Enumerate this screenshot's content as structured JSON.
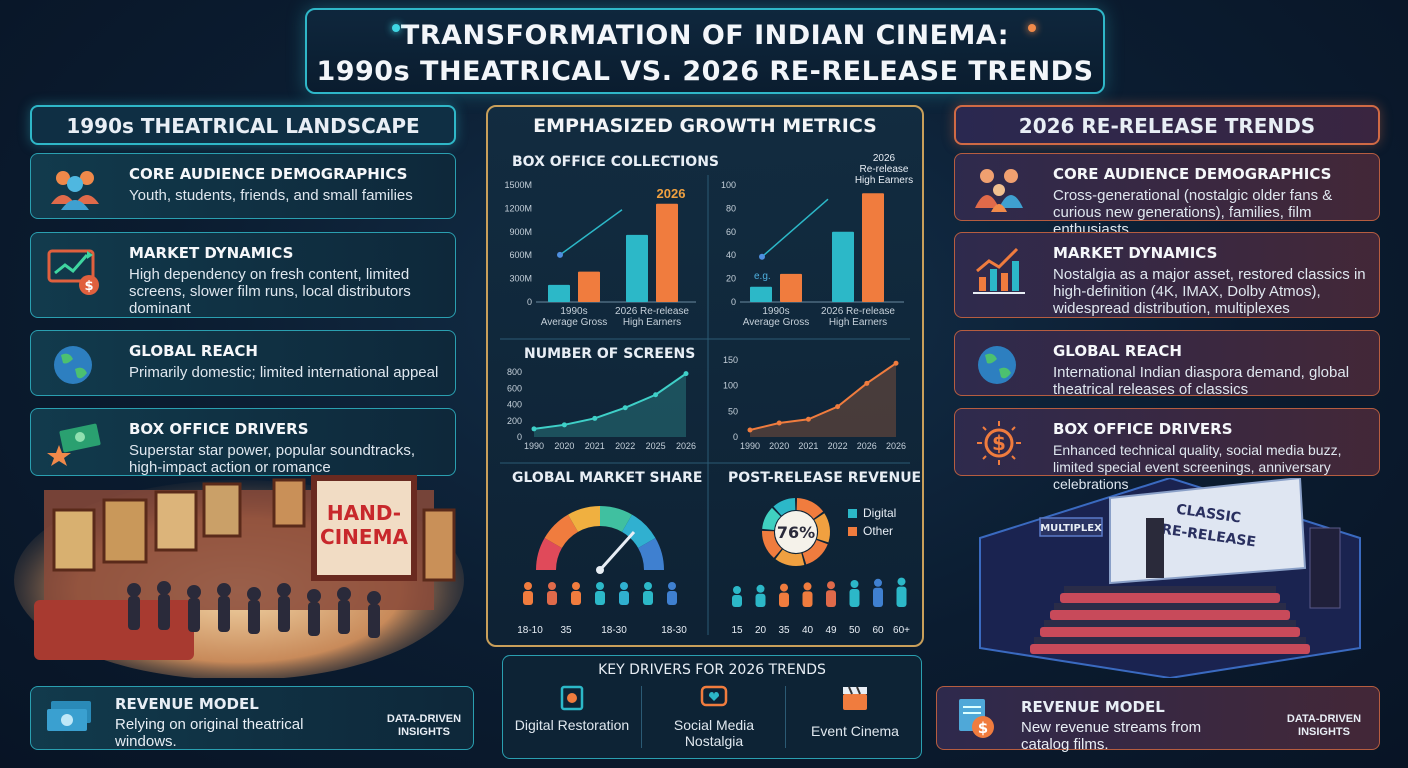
{
  "header": {
    "title_line1": "TRANSFORMATION OF INDIAN CINEMA:",
    "title_line2": "1990s THEATRICAL VS. 2026 RE-RELEASE TRENDS"
  },
  "left": {
    "heading": "1990s THEATRICAL LANDSCAPE",
    "cards": [
      {
        "title": "CORE AUDIENCE DEMOGRAPHICS",
        "body": "Youth, students, friends, and small families",
        "icon": "people-group-icon"
      },
      {
        "title": "MARKET DYNAMICS",
        "body": "High dependency on fresh content, limited screens, slower film runs, local distributors dominant",
        "icon": "chart-monitor-icon"
      },
      {
        "title": "GLOBAL REACH",
        "body": "Primarily domestic; limited international appeal",
        "icon": "globe-icon"
      },
      {
        "title": "BOX OFFICE DRIVERS",
        "body": "Superstar star power, popular soundtracks, high-impact action or romance",
        "icon": "money-star-icon"
      }
    ],
    "illustration_sign": "HAND-\nCINEMA",
    "revenue": {
      "title": "REVENUE MODEL",
      "body": "Relying on original theatrical windows.",
      "tag": "DATA-DRIVEN INSIGHTS"
    }
  },
  "right": {
    "heading": "2026 RE-RELEASE TRENDS",
    "cards": [
      {
        "title": "CORE AUDIENCE DEMOGRAPHICS",
        "body": "Cross-generational (nostalgic older fans & curious new generations), families, film enthusiasts",
        "icon": "family-icon"
      },
      {
        "title": "MARKET DYNAMICS",
        "body": "Nostalgia as a major asset, restored classics in high-definition (4K, IMAX, Dolby Atmos), widespread distribution, multiplexes",
        "icon": "growth-chart-icon"
      },
      {
        "title": "GLOBAL REACH",
        "body": "International Indian diaspora demand, global theatrical releases of classics",
        "icon": "globe-icon"
      },
      {
        "title": "BOX OFFICE DRIVERS",
        "body": "Enhanced technical quality, social media buzz, limited special event screenings, anniversary celebrations",
        "icon": "dollar-burst-icon"
      }
    ],
    "illustration_sign1": "MULTIPLEX",
    "illustration_sign2": "CLASSIC\nRE-RELEASE",
    "revenue": {
      "title": "REVENUE MODEL",
      "body": "New revenue streams from catalog films.",
      "tag": "DATA-DRIVEN INSIGHTS"
    }
  },
  "center": {
    "heading": "EMPHASIZED GROWTH METRICS",
    "box_office_label": "BOX OFFICE COLLECTIONS",
    "screens_label": "NUMBER OF SCREENS",
    "market_share_label": "GLOBAL MARKET SHARE",
    "post_release_label": "POST-RELEASE REVENUE",
    "drivers": {
      "heading": "KEY DRIVERS FOR 2026 TRENDS",
      "items": [
        {
          "label": "Digital Restoration",
          "icon": "film-restore-icon"
        },
        {
          "label": "Social Media Nostalgia",
          "icon": "heart-chat-icon"
        },
        {
          "label": "Event Cinema",
          "icon": "clapperboard-icon"
        }
      ]
    },
    "colors": {
      "teal": "#2cb8c8",
      "orange": "#f07c3e",
      "accent": "#c99f5a"
    }
  },
  "chart_data": [
    {
      "type": "bar",
      "title": "BOX OFFICE COLLECTIONS",
      "categories": [
        "1990s Average Gross",
        "2026 Re-release High Earners"
      ],
      "series": [
        {
          "values": [
            220,
            860
          ]
        },
        {
          "values": [
            390,
            1260
          ]
        }
      ],
      "yticks": [
        "0",
        "300M",
        "600M",
        "900M",
        "1200M",
        "1500M"
      ],
      "ylim": [
        0,
        1500
      ],
      "annotation": "2026"
    },
    {
      "type": "bar",
      "categories": [
        "1990s Average Gross",
        "2026 Re-release High Earners"
      ],
      "series": [
        {
          "values": [
            13,
            60
          ]
        },
        {
          "values": [
            24,
            93
          ]
        }
      ],
      "yticks": [
        "0",
        "20",
        "40",
        "60",
        "80",
        "100"
      ],
      "ylim": [
        0,
        100
      ],
      "annotation": "2026\nRe-release\nHigh Earners",
      "note": "e.g."
    },
    {
      "type": "area",
      "title": "NUMBER OF SCREENS",
      "x": [
        "1990",
        "2020",
        "2021",
        "2022",
        "2025",
        "2026"
      ],
      "values": [
        100,
        150,
        230,
        360,
        520,
        780
      ],
      "yticks": [
        "0",
        "200",
        "400",
        "600",
        "800"
      ],
      "ylim": [
        0,
        800
      ]
    },
    {
      "type": "area",
      "x": [
        "1990",
        "2020",
        "2021",
        "2022",
        "2026",
        "2026"
      ],
      "values": [
        15,
        30,
        38,
        65,
        115,
        158
      ],
      "yticks": [
        "0",
        "50",
        "100",
        "150"
      ],
      "ylim": [
        0,
        165
      ]
    },
    {
      "type": "gauge",
      "title": "GLOBAL MARKET SHARE",
      "age_labels": [
        "18-10",
        "35",
        "18-30",
        "18-30"
      ]
    },
    {
      "type": "pie",
      "title": "POST-RELEASE REVENUE",
      "center_label": "76%",
      "slices": [
        {
          "name": "Digital",
          "value": 76
        },
        {
          "name": "Other",
          "value": 24
        }
      ],
      "age_labels": [
        "15",
        "20",
        "35",
        "40",
        "49",
        "50",
        "60",
        "60+"
      ]
    }
  ]
}
